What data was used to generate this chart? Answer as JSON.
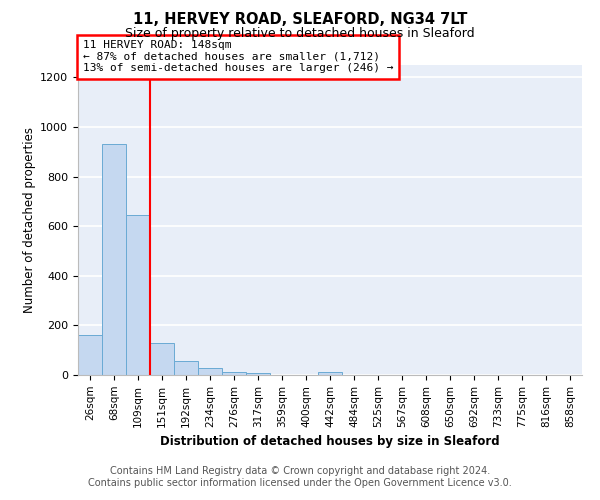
{
  "title1": "11, HERVEY ROAD, SLEAFORD, NG34 7LT",
  "title2": "Size of property relative to detached houses in Sleaford",
  "xlabel": "Distribution of detached houses by size in Sleaford",
  "ylabel": "Number of detached properties",
  "footnote1": "Contains HM Land Registry data © Crown copyright and database right 2024.",
  "footnote2": "Contains public sector information licensed under the Open Government Licence v3.0.",
  "bar_labels": [
    "26sqm",
    "68sqm",
    "109sqm",
    "151sqm",
    "192sqm",
    "234sqm",
    "276sqm",
    "317sqm",
    "359sqm",
    "400sqm",
    "442sqm",
    "484sqm",
    "525sqm",
    "567sqm",
    "608sqm",
    "650sqm",
    "692sqm",
    "733sqm",
    "775sqm",
    "816sqm",
    "858sqm"
  ],
  "bar_values": [
    160,
    930,
    645,
    130,
    55,
    30,
    12,
    8,
    0,
    0,
    12,
    0,
    0,
    0,
    0,
    0,
    0,
    0,
    0,
    0,
    0
  ],
  "bar_color": "#c5d8f0",
  "bar_edge_color": "#6aaad4",
  "ylim": [
    0,
    1250
  ],
  "yticks": [
    0,
    200,
    400,
    600,
    800,
    1000,
    1200
  ],
  "red_line_x": 2.5,
  "annotation_line1": "11 HERVEY ROAD: 148sqm",
  "annotation_line2": "← 87% of detached houses are smaller (1,712)",
  "annotation_line3": "13% of semi-detached houses are larger (246) →",
  "bg_color": "#e8eef8",
  "grid_color": "#ffffff",
  "title_fontsize": 10.5,
  "subtitle_fontsize": 9,
  "axis_fontsize": 8.5,
  "tick_fontsize": 8,
  "xtick_fontsize": 7.5,
  "annotation_fontsize": 8,
  "footnote_fontsize": 7
}
